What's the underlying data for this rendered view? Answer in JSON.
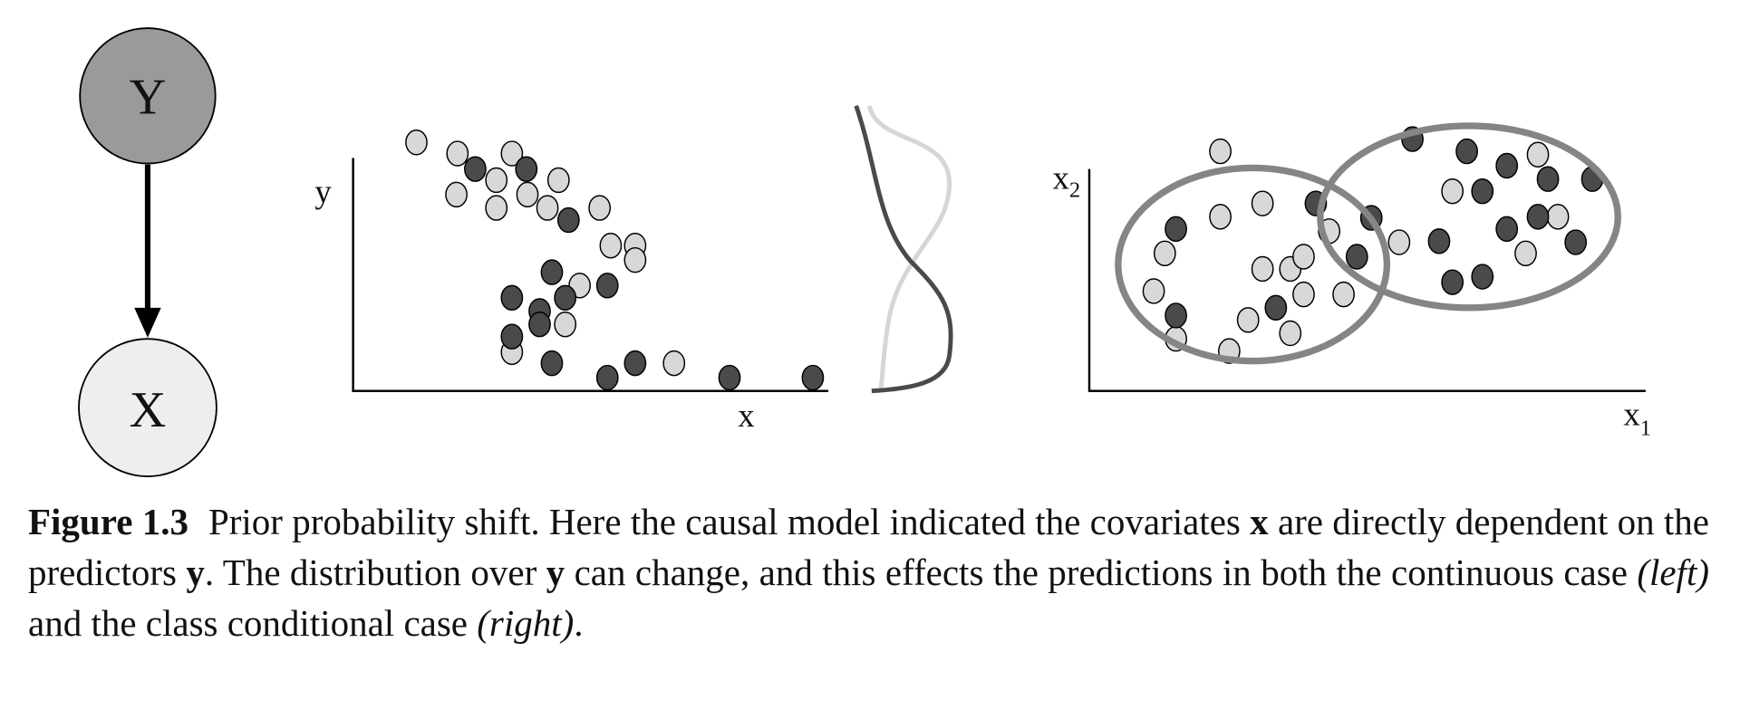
{
  "figure": {
    "nodes": [
      {
        "label": "Y"
      },
      {
        "label": "X"
      }
    ],
    "left_plot": {
      "x_label": "x",
      "y_label": "y"
    },
    "right_plot": {
      "x_label": "x",
      "x_subscript": "1",
      "y_label": "x",
      "y_subscript": "2"
    },
    "caption": {
      "label": "Figure 1.3",
      "parts": [
        {
          "text": "Prior probability shift. Here the causal model indicated the covariates ",
          "style": "normal"
        },
        {
          "text": "x",
          "style": "bold"
        },
        {
          "text": " are directly dependent on the predictors ",
          "style": "normal"
        },
        {
          "text": "y",
          "style": "bold"
        },
        {
          "text": ". The distribution over ",
          "style": "normal"
        },
        {
          "text": "y",
          "style": "bold"
        },
        {
          "text": " can change, and this effects the predictions in both the continuous case ",
          "style": "normal"
        },
        {
          "text": "(left)",
          "style": "italic"
        },
        {
          "text": " and the class conditional case ",
          "style": "normal"
        },
        {
          "text": "(right)",
          "style": "italic"
        },
        {
          "text": ".",
          "style": "normal"
        }
      ]
    }
  }
}
